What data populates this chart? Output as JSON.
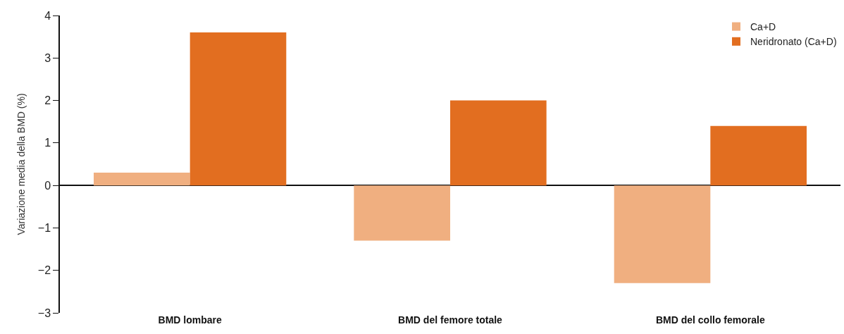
{
  "chart_data": {
    "type": "bar",
    "ylabel": "Variazione media della BMD (%)",
    "categories": [
      "BMD lombare",
      "BMD del femore totale",
      "BMD del collo femorale"
    ],
    "series": [
      {
        "name": "Ca+D",
        "color": "#f0af80",
        "values": [
          0.3,
          -1.3,
          -2.3
        ]
      },
      {
        "name": "Neridronato (Ca+D)",
        "color": "#e26e20",
        "values": [
          3.6,
          2.0,
          1.4
        ]
      }
    ],
    "ylim": [
      -3,
      4
    ],
    "yticks": [
      {
        "value": -3,
        "label": "−3"
      },
      {
        "value": -2,
        "label": "−2"
      },
      {
        "value": -1,
        "label": "−1"
      },
      0,
      1,
      2,
      3,
      4
    ],
    "legend": "top right"
  }
}
